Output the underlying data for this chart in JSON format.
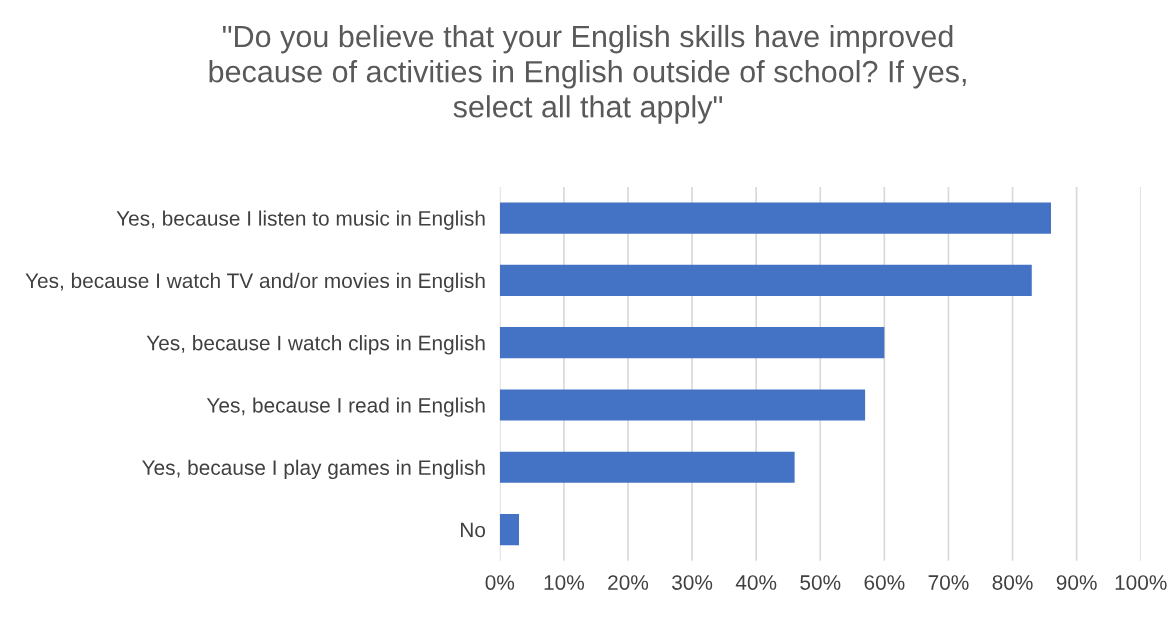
{
  "chart_data": {
    "type": "bar",
    "orientation": "horizontal",
    "title": "\"Do you believe that your English skills have improved\nbecause of activities in English outside of school? If yes,\nselect all that apply\"",
    "categories": [
      "Yes, because I listen to music in English",
      "Yes, because I watch TV and/or movies in English",
      "Yes, because I watch clips in English",
      "Yes, because I read in English",
      "Yes, because I play games in English",
      "No"
    ],
    "values": [
      86,
      83,
      60,
      57,
      46,
      3
    ],
    "color": "#4472c4",
    "xlim": [
      0,
      100
    ],
    "xticks": [
      {
        "value": 0,
        "label": "0%"
      },
      {
        "value": 10,
        "label": "10%"
      },
      {
        "value": 20,
        "label": "20%"
      },
      {
        "value": 30,
        "label": "30%"
      },
      {
        "value": 40,
        "label": "40%"
      },
      {
        "value": 50,
        "label": "50%"
      },
      {
        "value": 60,
        "label": "60%"
      },
      {
        "value": 70,
        "label": "70%"
      },
      {
        "value": 80,
        "label": "80%"
      },
      {
        "value": 90,
        "label": "90%"
      },
      {
        "value": 100,
        "label": "100%"
      }
    ],
    "grid": "x"
  }
}
